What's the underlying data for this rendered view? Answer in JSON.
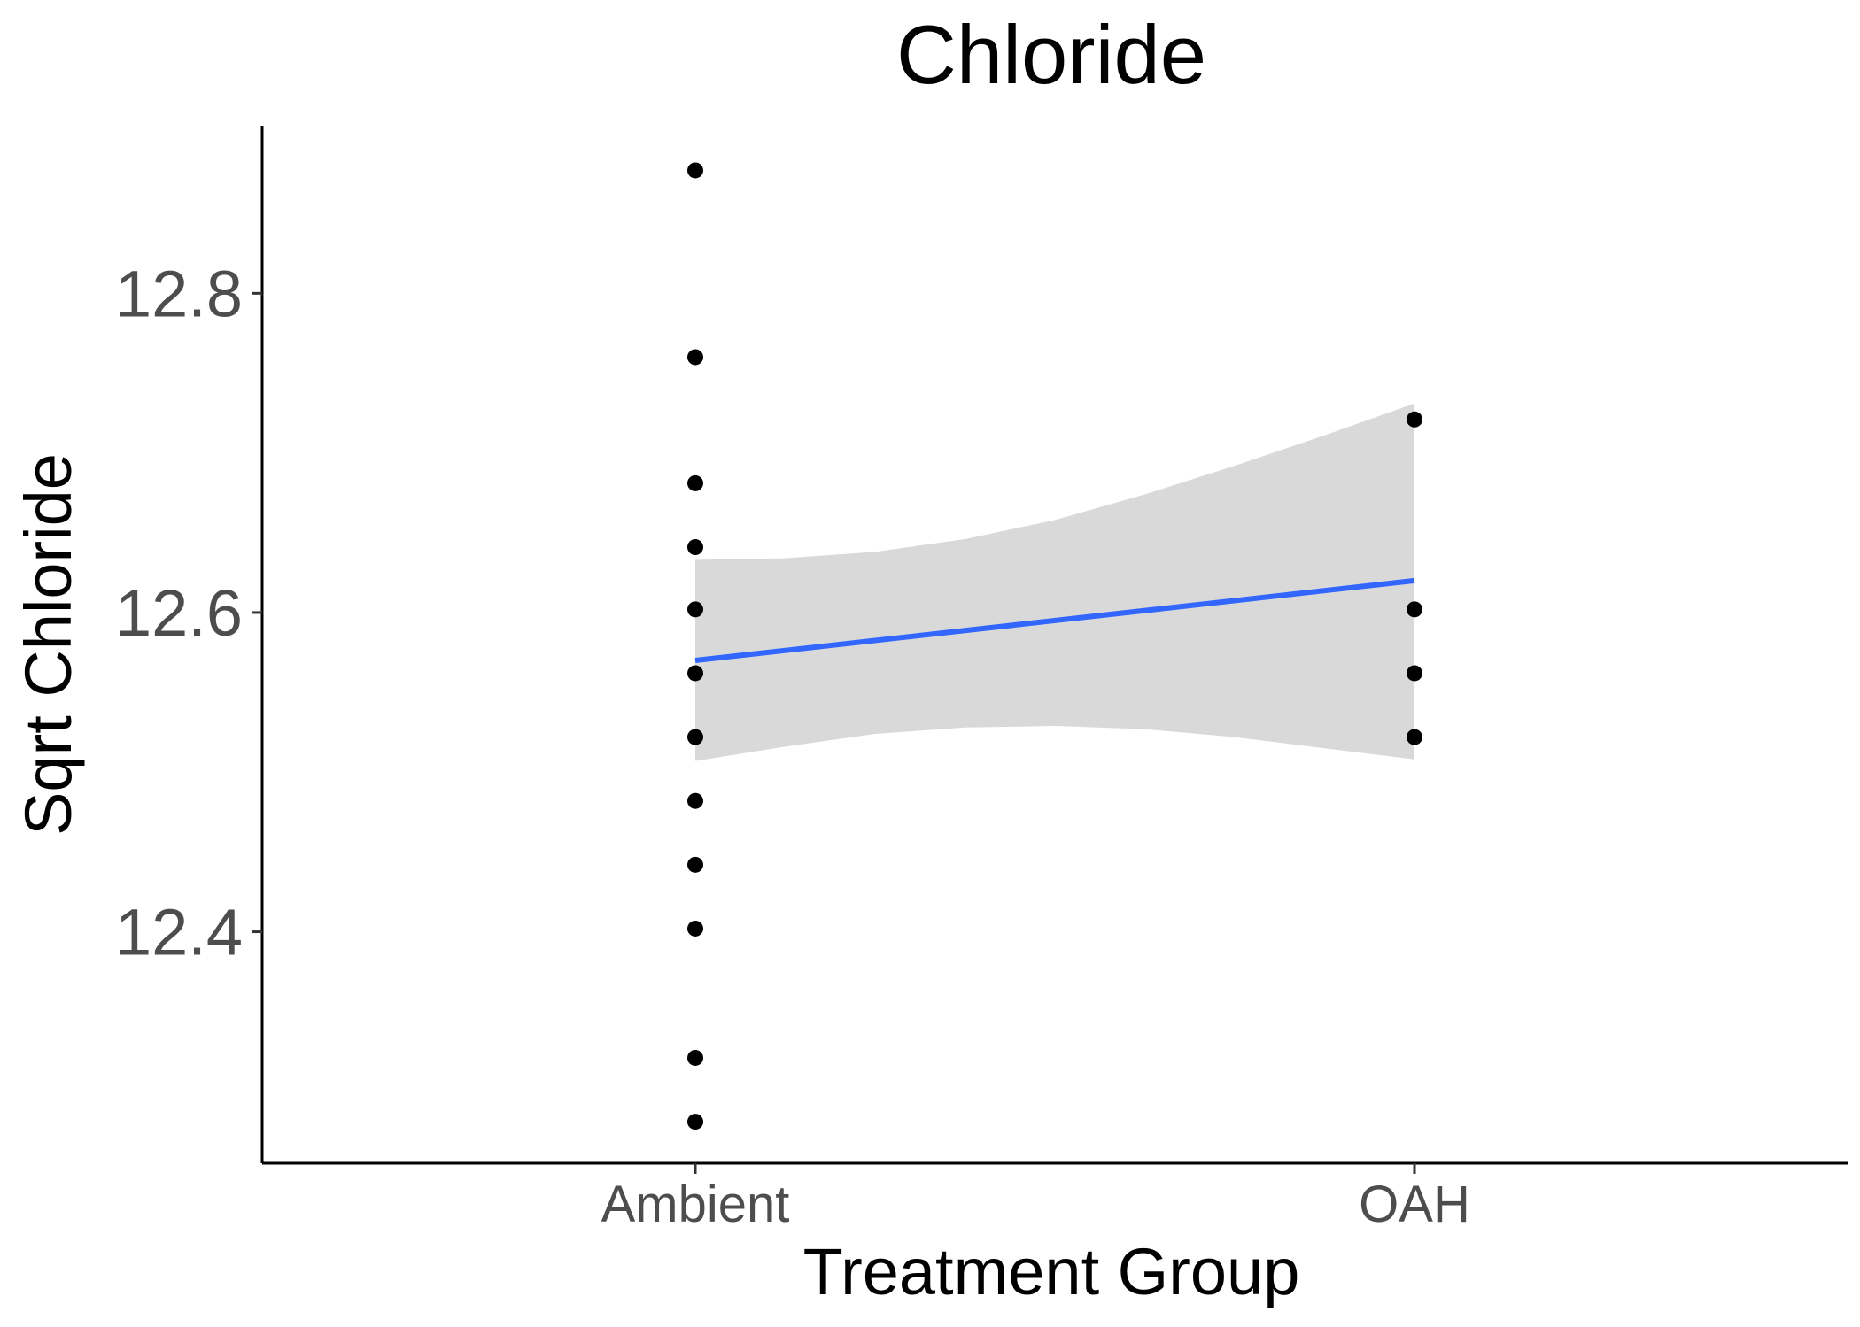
{
  "chart_data": {
    "type": "scatter",
    "title": "Chloride",
    "xlabel": "Treatment Group",
    "ylabel": "Sqrt Chloride",
    "categories": [
      "Ambient",
      "OAH"
    ],
    "ylim": [
      12.255,
      12.905
    ],
    "y_ticks": [
      "12.4",
      "12.6",
      "12.8"
    ],
    "grid": false,
    "legend": "none",
    "points": [
      {
        "x": "Ambient",
        "y": 12.877
      },
      {
        "x": "Ambient",
        "y": 12.76
      },
      {
        "x": "Ambient",
        "y": 12.681
      },
      {
        "x": "Ambient",
        "y": 12.641
      },
      {
        "x": "Ambient",
        "y": 12.602
      },
      {
        "x": "Ambient",
        "y": 12.562
      },
      {
        "x": "Ambient",
        "y": 12.522
      },
      {
        "x": "Ambient",
        "y": 12.482
      },
      {
        "x": "Ambient",
        "y": 12.442
      },
      {
        "x": "Ambient",
        "y": 12.402
      },
      {
        "x": "Ambient",
        "y": 12.321
      },
      {
        "x": "Ambient",
        "y": 12.281
      },
      {
        "x": "OAH",
        "y": 12.721
      },
      {
        "x": "OAH",
        "y": 12.602
      },
      {
        "x": "OAH",
        "y": 12.562
      },
      {
        "x": "OAH",
        "y": 12.522
      }
    ],
    "fit_line": {
      "x": [
        "Ambient",
        "OAH"
      ],
      "y": [
        12.57,
        12.62
      ]
    },
    "confidence_band": {
      "x_fraction": [
        0,
        0.125,
        0.25,
        0.375,
        0.5,
        0.625,
        0.75,
        0.875,
        1
      ],
      "upper": [
        12.633,
        12.634,
        12.638,
        12.646,
        12.658,
        12.674,
        12.692,
        12.711,
        12.731
      ],
      "lower": [
        12.507,
        12.516,
        12.524,
        12.528,
        12.529,
        12.527,
        12.522,
        12.515,
        12.508
      ]
    },
    "colors": {
      "points": "#000000",
      "fit_line": "#3366ff",
      "confidence_band": "#d9d9d9"
    }
  }
}
